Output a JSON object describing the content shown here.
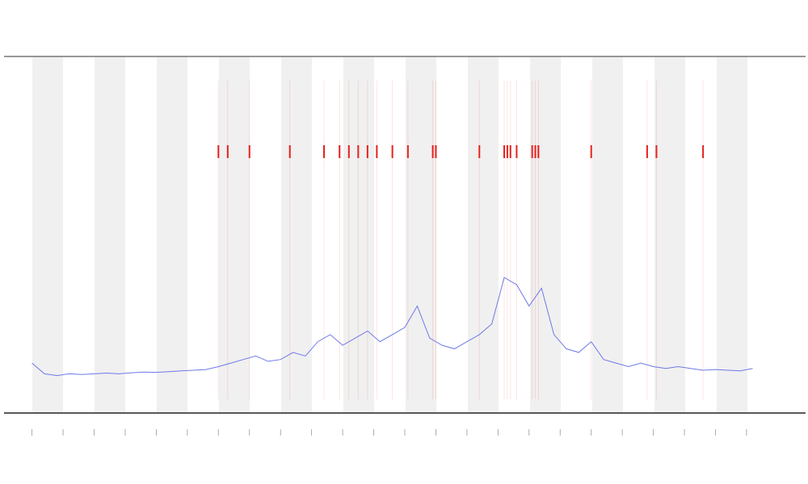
{
  "chart_data": {
    "type": "line",
    "x": [
      0,
      0.4,
      0.8,
      1.2,
      1.6,
      2,
      2.4,
      2.8,
      3.2,
      3.6,
      4,
      4.4,
      4.8,
      5.2,
      5.6,
      6,
      6.4,
      6.8,
      7.2,
      7.6,
      8,
      8.4,
      8.8,
      9.2,
      9.6,
      10,
      10.4,
      10.8,
      11.2,
      11.6,
      12,
      12.4,
      12.8,
      13.2,
      13.6,
      14,
      14.4,
      14.8,
      15.2,
      15.6,
      16,
      16.4,
      16.8,
      17.2,
      17.6,
      18,
      18.4,
      18.8,
      19.2,
      19.6,
      20,
      20.4,
      20.8,
      21.2,
      21.6,
      22,
      22.4,
      22.8,
      23.2
    ],
    "series": [
      {
        "color": "#6f78e8",
        "values": [
          14,
          11,
          10.5,
          11,
          10.8,
          11,
          11.2,
          11,
          11.3,
          11.5,
          11.4,
          11.6,
          11.8,
          12,
          12.2,
          13,
          14,
          15,
          16,
          14.5,
          15,
          17,
          16,
          20,
          22,
          19,
          21,
          23,
          20,
          22,
          24,
          30,
          21,
          19,
          18,
          20,
          22,
          25,
          38,
          36,
          30,
          35,
          22,
          18,
          17,
          20,
          15,
          14,
          13,
          14,
          13,
          12.5,
          13,
          12.5,
          12,
          12.2,
          12,
          11.8,
          12.5
        ]
      }
    ],
    "events": [
      6.0,
      6.3,
      7.0,
      8.3,
      9.4,
      9.9,
      10.2,
      10.5,
      10.8,
      11.1,
      11.6,
      12.1,
      12.9,
      13.0,
      14.4,
      15.2,
      15.3,
      15.4,
      15.6,
      16.1,
      16.2,
      16.3,
      18.0,
      19.8,
      20.1,
      21.6
    ],
    "event_color": "#e8201c",
    "xlim": [
      -0.9,
      24.9
    ],
    "ylim": [
      0,
      100
    ],
    "xticks": [
      0,
      1,
      2,
      3,
      4,
      5,
      6,
      7,
      8,
      9,
      10,
      11,
      12,
      13,
      14,
      15,
      16,
      17,
      18,
      19,
      20,
      21,
      22,
      23
    ]
  }
}
